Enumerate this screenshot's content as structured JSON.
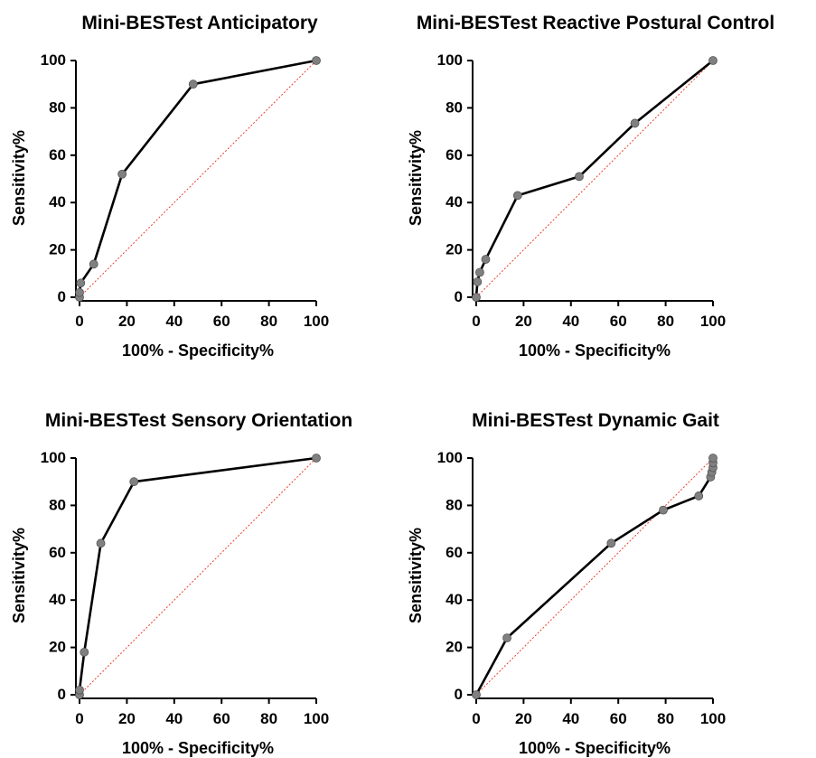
{
  "colors": {
    "curve": "#000000",
    "marker_fill": "#808080",
    "marker_stroke": "#555555",
    "reference": "#e8402a",
    "axis": "#000000"
  },
  "chart_data": [
    {
      "type": "line",
      "title": "Mini-BESTest Anticipatory",
      "xlabel": "100% - Specificity%",
      "ylabel": "Sensitivity%",
      "xlim": [
        0,
        100
      ],
      "ylim": [
        0,
        100
      ],
      "xticks": [
        "0",
        "20",
        "40",
        "60",
        "80",
        "100"
      ],
      "yticks": [
        "0",
        "20",
        "40",
        "60",
        "80",
        "100"
      ],
      "grid": false,
      "reference_line": "diagonal",
      "series": [
        {
          "x": [
            0,
            0,
            0.5,
            6,
            18,
            48,
            100
          ],
          "y": [
            0,
            2,
            6,
            14,
            52,
            90,
            100
          ]
        }
      ]
    },
    {
      "type": "line",
      "title": "Mini-BESTest Reactive Postural Control",
      "xlabel": "100% - Specificity%",
      "ylabel": "Sensitivity%",
      "xlim": [
        0,
        100
      ],
      "ylim": [
        0,
        100
      ],
      "xticks": [
        "0",
        "20",
        "40",
        "60",
        "80",
        "100"
      ],
      "yticks": [
        "0",
        "20",
        "40",
        "60",
        "80",
        "100"
      ],
      "grid": false,
      "reference_line": "diagonal",
      "series": [
        {
          "x": [
            0,
            0.5,
            1.5,
            4,
            17.5,
            43.5,
            67,
            100
          ],
          "y": [
            0,
            6.5,
            10.5,
            16,
            43,
            51,
            73.5,
            100
          ]
        }
      ]
    },
    {
      "type": "line",
      "title": "Mini-BESTest Sensory Orientation",
      "xlabel": "100% - Specificity%",
      "ylabel": "Sensitivity%",
      "xlim": [
        0,
        100
      ],
      "ylim": [
        0,
        100
      ],
      "xticks": [
        "0",
        "20",
        "40",
        "60",
        "80",
        "100"
      ],
      "yticks": [
        "0",
        "20",
        "40",
        "60",
        "80",
        "100"
      ],
      "grid": false,
      "reference_line": "diagonal",
      "series": [
        {
          "x": [
            0,
            0,
            2,
            9,
            23,
            100
          ],
          "y": [
            0,
            2,
            18,
            64,
            90,
            100
          ]
        }
      ]
    },
    {
      "type": "line",
      "title": "Mini-BESTest Dynamic Gait",
      "xlabel": "100% - Specificity%",
      "ylabel": "Sensitivity%",
      "xlim": [
        0,
        100
      ],
      "ylim": [
        0,
        100
      ],
      "xticks": [
        "0",
        "20",
        "40",
        "60",
        "80",
        "100"
      ],
      "yticks": [
        "0",
        "20",
        "40",
        "60",
        "80",
        "100"
      ],
      "grid": false,
      "reference_line": "diagonal",
      "series": [
        {
          "x": [
            0,
            13,
            57,
            79,
            94,
            99,
            99.5,
            100,
            100,
            100
          ],
          "y": [
            0,
            24,
            64,
            78,
            84,
            92,
            94,
            96,
            98,
            100
          ]
        }
      ]
    }
  ]
}
